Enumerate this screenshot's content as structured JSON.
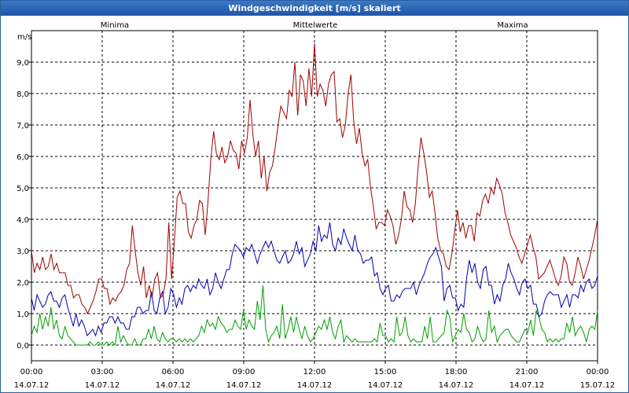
{
  "chart_data": {
    "type": "line",
    "title": "Windgeschwindigkeit [m/s] skaliert",
    "ylabel": "m/s",
    "xlabel": "",
    "ylim": [
      -0.5,
      10.0
    ],
    "xlim_hours": [
      0,
      24
    ],
    "yticks": [
      "0,0",
      "1,0",
      "2,0",
      "3,0",
      "4,0",
      "5,0",
      "6,0",
      "7,0",
      "8,0",
      "9,0"
    ],
    "xticks": [
      {
        "time": "00:00",
        "date": "14.07.12"
      },
      {
        "time": "03:00",
        "date": "14.07.12"
      },
      {
        "time": "06:00",
        "date": "14.07.12"
      },
      {
        "time": "09:00",
        "date": "14.07.12"
      },
      {
        "time": "12:00",
        "date": "14.07.12"
      },
      {
        "time": "15:00",
        "date": "14.07.12"
      },
      {
        "time": "18:00",
        "date": "14.07.12"
      },
      {
        "time": "21:00",
        "date": "14.07.12"
      },
      {
        "time": "00:00",
        "date": "15.07.12"
      }
    ],
    "grid": true,
    "series": [
      {
        "name": "Minima",
        "color": "#00a000",
        "values": [
          0.3,
          0.6,
          0.4,
          1.0,
          0.5,
          0.9,
          0.6,
          1.2,
          0.5,
          0.8,
          0.3,
          0.2,
          0.6,
          0.3,
          0.2,
          0.1,
          0.0,
          0.0,
          0.0,
          0.0,
          0.0,
          0.1,
          0.0,
          0.0,
          0.1,
          0.0,
          0.0,
          0.1,
          0.0,
          0.1,
          0.0,
          0.6,
          0.1,
          0.3,
          0.1,
          0.0,
          0.0,
          0.2,
          0.0,
          0.0,
          0.2,
          0.2,
          0.5,
          0.2,
          0.6,
          0.2,
          0.1,
          0.4,
          0.2,
          0.1,
          0.2,
          0.2,
          0.1,
          0.2,
          0.1,
          0.2,
          0.1,
          0.2,
          0.1,
          0.2,
          0.3,
          0.6,
          0.4,
          0.8,
          0.6,
          0.7,
          0.5,
          0.9,
          0.7,
          0.6,
          0.4,
          0.5,
          0.5,
          0.8,
          0.6,
          0.5,
          1.1,
          0.5,
          0.8,
          0.6,
          0.5,
          1.4,
          0.8,
          1.9,
          0.5,
          0.1,
          0.3,
          0.4,
          0.6,
          0.2,
          1.3,
          0.2,
          0.5,
          0.9,
          0.4,
          0.9,
          0.5,
          0.2,
          0.6,
          0.3,
          0.1,
          0.2,
          0.4,
          0.6,
          0.5,
          0.8,
          0.5,
          0.9,
          0.4,
          0.2,
          0.6,
          0.8,
          0.1,
          0.3,
          0.2,
          0.1,
          0.2,
          0.1,
          0.1,
          0.1,
          0.1,
          0.1,
          0.1,
          0.2,
          0.1,
          0.7,
          0.3,
          0.3,
          0.1,
          0.2,
          0.1,
          0.9,
          0.3,
          0.4,
          0.9,
          0.3,
          0.1,
          0.2,
          0.1,
          0.1,
          0.1,
          0.6,
          0.2,
          0.9,
          0.1,
          0.1,
          0.2,
          0.3,
          0.4,
          1.1,
          0.9,
          0.1,
          0.3,
          0.5,
          0.4,
          1.0,
          0.5,
          0.4,
          0.1,
          0.2,
          0.6,
          0.3,
          0.1,
          0.2,
          1.1,
          0.4,
          0.6,
          0.1,
          0.3,
          0.4,
          0.5,
          0.5,
          0.3,
          0.2,
          0.1,
          0.1,
          0.3,
          0.5,
          0.4,
          0.8,
          0.3,
          1.1,
          0.9,
          0.5,
          0.4,
          0.1,
          0.2,
          0.1,
          0.2,
          0.1,
          0.2,
          0.2,
          0.7,
          0.4,
          0.9,
          0.3,
          0.5,
          0.6,
          0.4,
          0.1,
          0.5,
          0.6,
          0.5,
          1.1
        ]
      },
      {
        "name": "Mittelwerte",
        "color": "#0000b0",
        "values": [
          1.5,
          1.1,
          1.6,
          1.4,
          1.2,
          1.3,
          1.6,
          1.7,
          1.4,
          1.4,
          1.2,
          1.5,
          1.6,
          1.2,
          0.9,
          0.6,
          1.0,
          0.6,
          0.8,
          0.6,
          0.3,
          0.4,
          0.5,
          0.3,
          0.6,
          0.4,
          0.7,
          0.7,
          0.9,
          0.9,
          0.7,
          0.9,
          0.7,
          0.7,
          0.5,
          0.5,
          0.9,
          0.9,
          1.2,
          1.2,
          1.0,
          1.1,
          1.1,
          1.7,
          1.1,
          1.0,
          1.5,
          1.7,
          1.0,
          1.2,
          1.8,
          1.6,
          1.2,
          1.5,
          1.3,
          1.8,
          1.9,
          1.7,
          1.9,
          1.8,
          2.1,
          1.9,
          1.8,
          2.1,
          1.6,
          1.8,
          2.3,
          2.0,
          1.8,
          2.1,
          2.4,
          2.4,
          2.9,
          3.2,
          3.1,
          3.0,
          2.8,
          3.1,
          3.0,
          3.2,
          2.9,
          2.6,
          2.9,
          3.1,
          3.3,
          3.1,
          3.3,
          3.0,
          2.7,
          2.6,
          2.8,
          3.0,
          2.6,
          2.7,
          2.9,
          3.3,
          2.9,
          3.1,
          2.5,
          2.7,
          2.9,
          3.3,
          3.0,
          3.8,
          3.3,
          3.5,
          3.4,
          3.9,
          3.2,
          3.0,
          3.4,
          3.2,
          3.7,
          3.4,
          3.2,
          3.0,
          3.5,
          3.0,
          2.9,
          2.6,
          2.7,
          2.7,
          2.8,
          2.2,
          2.3,
          1.8,
          1.6,
          1.8,
          1.9,
          1.4,
          1.4,
          1.6,
          1.5,
          1.7,
          1.8,
          1.8,
          1.8,
          2.0,
          1.6,
          1.9,
          2.1,
          2.3,
          2.6,
          2.8,
          2.9,
          3.1,
          2.8,
          2.5,
          1.4,
          1.8,
          1.9,
          1.5,
          1.5,
          1.1,
          1.3,
          1.2,
          2.1,
          2.7,
          2.3,
          2.6,
          2.0,
          1.8,
          2.4,
          2.5,
          1.9,
          1.9,
          1.3,
          1.6,
          1.4,
          1.9,
          2.1,
          2.6,
          2.3,
          2.1,
          1.8,
          1.6,
          2.0,
          2.1,
          1.8,
          1.9,
          1.3,
          1.3,
          0.9,
          1.0,
          1.4,
          1.6,
          1.7,
          1.6,
          1.6,
          1.6,
          1.2,
          1.4,
          1.6,
          1.2,
          1.6,
          1.6,
          1.5,
          1.9,
          1.7,
          2.0,
          2.1,
          1.8,
          1.9,
          2.2
        ]
      },
      {
        "name": "Maxima",
        "color": "#a00000",
        "values": [
          3.0,
          2.3,
          2.6,
          2.4,
          2.8,
          2.4,
          2.5,
          2.9,
          2.4,
          2.6,
          2.3,
          2.3,
          2.3,
          1.9,
          1.9,
          1.5,
          1.6,
          1.6,
          1.3,
          1.2,
          1.0,
          1.2,
          1.4,
          1.7,
          2.1,
          2.1,
          1.8,
          1.8,
          1.3,
          1.5,
          1.4,
          1.6,
          1.7,
          1.9,
          2.4,
          2.6,
          3.8,
          3.0,
          2.3,
          1.9,
          2.5,
          1.5,
          1.9,
          1.5,
          2.1,
          2.3,
          1.5,
          1.6,
          2.1,
          3.9,
          2.1,
          3.3,
          4.7,
          4.9,
          4.5,
          4.5,
          3.6,
          3.4,
          3.8,
          4.0,
          4.6,
          4.5,
          3.5,
          4.6,
          5.9,
          6.8,
          6.1,
          5.9,
          6.3,
          5.8,
          6.0,
          6.5,
          6.2,
          6.1,
          5.6,
          6.5,
          6.1,
          6.6,
          7.8,
          6.7,
          6.0,
          6.5,
          5.3,
          6.0,
          4.9,
          5.5,
          5.7,
          6.3,
          7.0,
          7.6,
          7.4,
          7.2,
          8.1,
          7.9,
          9.0,
          7.3,
          8.6,
          8.4,
          7.6,
          8.8,
          7.9,
          9.6,
          7.9,
          8.3,
          8.1,
          7.6,
          8.3,
          8.6,
          8.7,
          7.1,
          7.2,
          6.6,
          7.0,
          8.0,
          8.6,
          7.1,
          6.4,
          6.9,
          6.1,
          5.7,
          5.9,
          5.0,
          4.4,
          3.7,
          3.9,
          3.9,
          3.8,
          4.3,
          4.1,
          3.8,
          3.2,
          3.5,
          4.0,
          4.9,
          4.4,
          4.3,
          3.9,
          4.5,
          5.7,
          6.6,
          6.1,
          5.5,
          4.7,
          4.9,
          4.2,
          3.4,
          3.0,
          2.9,
          2.5,
          2.4,
          2.9,
          3.6,
          4.3,
          3.6,
          3.9,
          3.4,
          3.8,
          3.8,
          3.3,
          4.2,
          4.1,
          4.6,
          4.8,
          4.5,
          5.0,
          4.8,
          5.3,
          5.1,
          4.8,
          4.2,
          3.9,
          3.5,
          3.3,
          3.1,
          2.8,
          2.6,
          2.9,
          3.2,
          3.5,
          3.1,
          2.8,
          2.1,
          2.2,
          2.3,
          2.5,
          2.7,
          2.4,
          2.1,
          1.9,
          2.2,
          2.8,
          2.6,
          2.0,
          1.9,
          2.3,
          2.8,
          2.5,
          2.1,
          2.4,
          2.7,
          3.1,
          3.5,
          4.0
        ]
      }
    ]
  }
}
